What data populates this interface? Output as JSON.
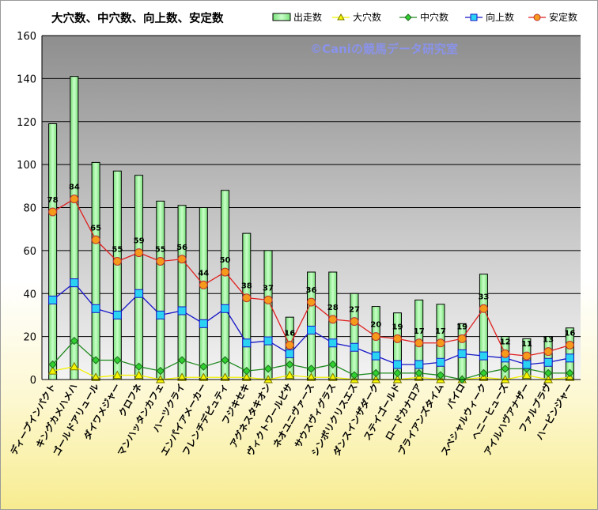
{
  "chart_data": {
    "type": "bar",
    "title": "大穴数、中穴数、向上数、安定数",
    "watermark": "©Caniの競馬データ研究室",
    "ylim": [
      0,
      160
    ],
    "yticks": [
      0,
      20,
      40,
      60,
      80,
      100,
      120,
      140,
      160
    ],
    "grid": true,
    "legend_position": "top-right",
    "categories": [
      "ディープインパクト",
      "キングカメハメハ",
      "ゴールドアリュール",
      "ダイワメジャー",
      "クロフネ",
      "マンハッタンカフェ",
      "ハーツクライ",
      "エンパイアメーカー",
      "フレンチデピュティ",
      "フジキセキ",
      "アグネスタキオン",
      "ヴィクトワールピサ",
      "ネオユニヴァース",
      "サウスヴィグラス",
      "シンボリクリスエス",
      "ダンスインザダーク",
      "ステイゴールド",
      "ロードカナロア",
      "ブライアンズタイム",
      "パイロ",
      "スペシャルウィーク",
      "ヘニーヒューズ",
      "アイルハヴアナザー",
      "ファルブラヴ",
      "ハービンジャー"
    ],
    "series": [
      {
        "name": "出走数",
        "kind": "bar",
        "color": "#9ef59e",
        "values": [
          119,
          141,
          101,
          97,
          95,
          83,
          81,
          80,
          88,
          68,
          60,
          29,
          50,
          50,
          40,
          34,
          31,
          37,
          35,
          26,
          49,
          20,
          19,
          20,
          24
        ]
      },
      {
        "name": "大穴数",
        "kind": "line",
        "color": "#f2f200",
        "values": [
          4,
          6,
          1,
          2,
          2,
          0,
          1,
          1,
          1,
          1,
          0,
          2,
          1,
          1,
          0,
          0,
          0,
          1,
          0,
          0,
          1,
          0,
          2,
          0,
          1
        ]
      },
      {
        "name": "中穴数",
        "kind": "line",
        "color": "#1f8a1f",
        "values": [
          7,
          18,
          9,
          9,
          6,
          4,
          9,
          6,
          9,
          4,
          5,
          7,
          5,
          7,
          2,
          3,
          3,
          3,
          2,
          0,
          3,
          5,
          5,
          3,
          3
        ]
      },
      {
        "name": "向上数",
        "kind": "line",
        "color": "#1515c8",
        "values": [
          37,
          45,
          33,
          30,
          40,
          30,
          32,
          26,
          33,
          17,
          18,
          12,
          23,
          17,
          15,
          11,
          7,
          7,
          8,
          12,
          11,
          10,
          7,
          8,
          10
        ]
      },
      {
        "name": "安定数",
        "kind": "line",
        "color": "#e01e1e",
        "values": [
          78,
          84,
          65,
          55,
          59,
          55,
          56,
          44,
          50,
          38,
          37,
          16,
          36,
          28,
          27,
          20,
          19,
          17,
          17,
          19,
          33,
          12,
          11,
          13,
          16
        ],
        "data_labels": [
          78,
          84,
          65,
          55,
          59,
          55,
          56,
          44,
          50,
          38,
          37,
          16,
          36,
          28,
          27,
          20,
          19,
          17,
          17,
          19,
          33,
          12,
          11,
          13,
          16
        ]
      }
    ]
  }
}
